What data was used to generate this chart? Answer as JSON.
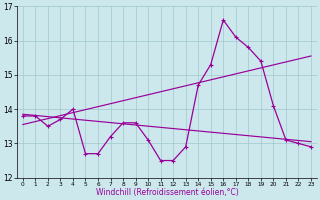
{
  "x": [
    0,
    1,
    2,
    3,
    4,
    5,
    6,
    7,
    8,
    9,
    10,
    11,
    12,
    13,
    14,
    15,
    16,
    17,
    18,
    19,
    20,
    21,
    22,
    23
  ],
  "y_main": [
    13.8,
    13.8,
    13.5,
    13.7,
    14.0,
    12.7,
    12.7,
    13.2,
    13.6,
    13.6,
    13.1,
    12.5,
    12.5,
    12.9,
    14.7,
    15.3,
    16.6,
    16.1,
    15.8,
    15.4,
    14.1,
    13.1,
    13.0,
    12.9
  ],
  "trend1_x": [
    0,
    23
  ],
  "trend1_y": [
    13.85,
    13.05
  ],
  "trend2_x": [
    0,
    23
  ],
  "trend2_y": [
    13.55,
    15.55
  ],
  "line_color": "#990099",
  "bg_color": "#cce8ed",
  "xlabel": "Windchill (Refroidissement éolien,°C)",
  "ylim": [
    12,
    17
  ],
  "xlim": [
    -0.5,
    23.5
  ],
  "yticks": [
    12,
    13,
    14,
    15,
    16,
    17
  ],
  "xticks": [
    0,
    1,
    2,
    3,
    4,
    5,
    6,
    7,
    8,
    9,
    10,
    11,
    12,
    13,
    14,
    15,
    16,
    17,
    18,
    19,
    20,
    21,
    22,
    23
  ]
}
